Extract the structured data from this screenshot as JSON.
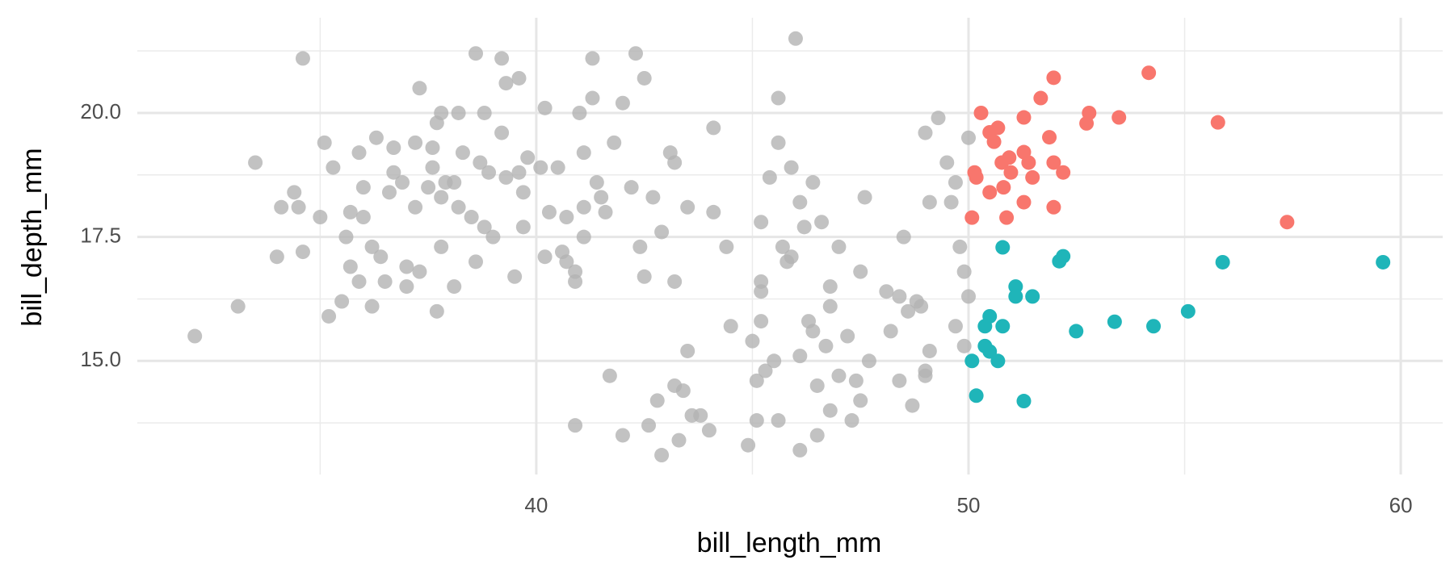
{
  "chart_data": {
    "type": "scatter",
    "x_label": "bill_length_mm",
    "y_label": "bill_depth_mm",
    "xlim": [
      30.77,
      60.97
    ],
    "ylim": [
      12.71,
      21.92
    ],
    "xticks": [
      40,
      50,
      60
    ],
    "yticks": [
      {
        "value": 15,
        "label": "15.0"
      },
      {
        "value": 17.5,
        "label": "17.5"
      },
      {
        "value": 20,
        "label": "20.0"
      }
    ],
    "x_minor_grid": [
      35,
      45,
      55
    ],
    "y_minor_grid": [
      13.75,
      16.25,
      18.75,
      21.25
    ],
    "grid": true,
    "series": [
      {
        "color": "#b3b3b3",
        "opacity": 0.8,
        "x": [
          32.1,
          33.1,
          33.5,
          34.0,
          34.1,
          34.4,
          34.5,
          34.6,
          34.6,
          35.0,
          35.1,
          35.2,
          35.3,
          35.5,
          35.6,
          35.7,
          35.7,
          35.9,
          35.9,
          36.0,
          36.0,
          36.2,
          36.2,
          36.3,
          36.4,
          36.5,
          36.6,
          36.7,
          36.7,
          36.9,
          37.0,
          37.0,
          37.2,
          37.2,
          37.3,
          37.3,
          37.5,
          37.6,
          37.6,
          37.7,
          37.7,
          37.8,
          37.8,
          37.8,
          37.9,
          38.1,
          38.1,
          38.2,
          38.2,
          38.3,
          38.5,
          38.6,
          38.6,
          38.7,
          38.8,
          38.8,
          38.9,
          39.0,
          39.2,
          39.2,
          39.3,
          39.3,
          39.5,
          39.6,
          39.6,
          39.7,
          39.7,
          39.8,
          40.1,
          40.2,
          40.2,
          40.3,
          40.5,
          40.6,
          40.7,
          40.7,
          40.9,
          40.9,
          40.9,
          41.0,
          41.1,
          41.1,
          41.1,
          41.3,
          41.3,
          41.4,
          41.5,
          41.6,
          41.7,
          41.8,
          42.0,
          42.0,
          42.2,
          42.3,
          42.4,
          42.5,
          42.5,
          42.6,
          42.7,
          42.8,
          42.9,
          42.9,
          43.1,
          43.2,
          43.2,
          43.2,
          43.3,
          43.4,
          43.5,
          43.5,
          43.6,
          43.8,
          44.0,
          44.1,
          44.1,
          44.4,
          44.5,
          44.9,
          45.0,
          45.1,
          45.1,
          45.2,
          45.2,
          45.2,
          45.2,
          45.3,
          45.4,
          45.5,
          45.6,
          45.6,
          45.6,
          45.7,
          45.8,
          45.9,
          45.9,
          46.0,
          46.1,
          46.1,
          46.1,
          46.2,
          46.3,
          46.4,
          46.4,
          46.5,
          46.5,
          46.6,
          46.7,
          46.8,
          46.8,
          47.0,
          47.0,
          47.2,
          47.3,
          47.4,
          47.5,
          47.5,
          47.6,
          47.7,
          48.1,
          48.2,
          48.4,
          48.4,
          48.5,
          48.6,
          48.7,
          48.8,
          48.9,
          49.0,
          49.1,
          49.1,
          49.3,
          49.5,
          49.6,
          49.7,
          49.7,
          49.8,
          49.9,
          49.9,
          50.0,
          50.0,
          49.0,
          49.0,
          46.8
        ],
        "y": [
          15.5,
          16.1,
          19.0,
          17.1,
          18.1,
          18.4,
          18.1,
          21.1,
          17.2,
          17.9,
          19.4,
          15.9,
          18.9,
          16.2,
          17.5,
          18.0,
          16.9,
          19.2,
          16.6,
          17.9,
          18.5,
          16.1,
          17.3,
          19.5,
          17.1,
          16.6,
          18.4,
          19.3,
          18.8,
          18.6,
          16.9,
          16.5,
          18.1,
          19.4,
          20.5,
          16.8,
          18.5,
          19.3,
          18.9,
          16.0,
          19.8,
          20.0,
          17.3,
          18.3,
          18.6,
          18.6,
          16.5,
          20.0,
          18.1,
          19.2,
          17.9,
          21.2,
          17.0,
          19.0,
          20.0,
          17.7,
          18.8,
          17.5,
          21.1,
          19.6,
          18.7,
          20.6,
          16.7,
          18.8,
          20.7,
          18.4,
          17.7,
          19.1,
          18.9,
          17.1,
          20.1,
          18.0,
          18.9,
          17.2,
          17.0,
          17.9,
          16.8,
          16.6,
          13.7,
          20.0,
          19.2,
          18.1,
          17.5,
          21.1,
          20.3,
          18.6,
          18.3,
          18.0,
          14.7,
          19.4,
          13.5,
          20.2,
          18.5,
          21.2,
          17.3,
          20.7,
          16.7,
          13.7,
          18.3,
          14.2,
          17.6,
          13.1,
          19.2,
          19.0,
          14.5,
          16.6,
          13.4,
          14.4,
          18.1,
          15.2,
          13.9,
          13.9,
          13.6,
          18.0,
          19.7,
          17.3,
          15.7,
          13.3,
          15.4,
          14.6,
          13.8,
          16.6,
          16.4,
          17.8,
          15.8,
          14.8,
          18.7,
          15.0,
          20.3,
          19.4,
          13.8,
          17.3,
          17.0,
          17.1,
          18.9,
          21.5,
          18.2,
          15.1,
          13.2,
          17.7,
          15.8,
          18.6,
          15.6,
          13.5,
          14.5,
          17.8,
          15.3,
          16.5,
          16.1,
          14.7,
          17.3,
          15.5,
          13.8,
          14.6,
          16.8,
          14.2,
          18.3,
          15.0,
          16.4,
          15.6,
          16.3,
          14.6,
          17.5,
          16.0,
          14.1,
          16.2,
          16.1,
          14.8,
          18.2,
          15.2,
          19.9,
          19.0,
          18.2,
          18.6,
          15.7,
          17.3,
          16.8,
          15.3,
          19.5,
          16.3,
          19.6,
          14.7,
          14.0
        ]
      },
      {
        "color": "#f8766d",
        "opacity": 1,
        "x": [
          50.29,
          50.49,
          50.59,
          50.68,
          51.28,
          52.73,
          52.79,
          53.48,
          54.17,
          51.97,
          51.67,
          51.87,
          51.97,
          52.19,
          50.14,
          50.18,
          50.49,
          50.81,
          50.77,
          50.94,
          50.98,
          51.28,
          51.39,
          51.48,
          51.28,
          51.97,
          50.08,
          50.88,
          55.77,
          57.37
        ],
        "y": [
          20.0,
          19.61,
          19.42,
          19.7,
          19.91,
          19.79,
          20.0,
          19.91,
          20.81,
          20.71,
          20.3,
          19.51,
          19.0,
          18.8,
          18.8,
          18.7,
          18.4,
          18.5,
          19.0,
          19.1,
          18.8,
          19.21,
          19.0,
          18.7,
          18.2,
          18.1,
          17.89,
          17.89,
          19.81,
          17.8
        ]
      },
      {
        "color": "#1fb5b9",
        "opacity": 1,
        "x": [
          50.79,
          52.19,
          52.1,
          55.88,
          59.59,
          51.09,
          51.09,
          51.48,
          50.49,
          50.38,
          50.79,
          52.49,
          53.38,
          54.28,
          55.08,
          50.38,
          50.49,
          50.08,
          50.68,
          50.18,
          51.28
        ],
        "y": [
          17.29,
          17.11,
          17.01,
          16.99,
          16.99,
          16.5,
          16.3,
          16.3,
          15.9,
          15.7,
          15.7,
          15.6,
          15.79,
          15.7,
          16.0,
          15.3,
          15.19,
          15.0,
          15.0,
          14.3,
          14.19
        ]
      }
    ]
  }
}
